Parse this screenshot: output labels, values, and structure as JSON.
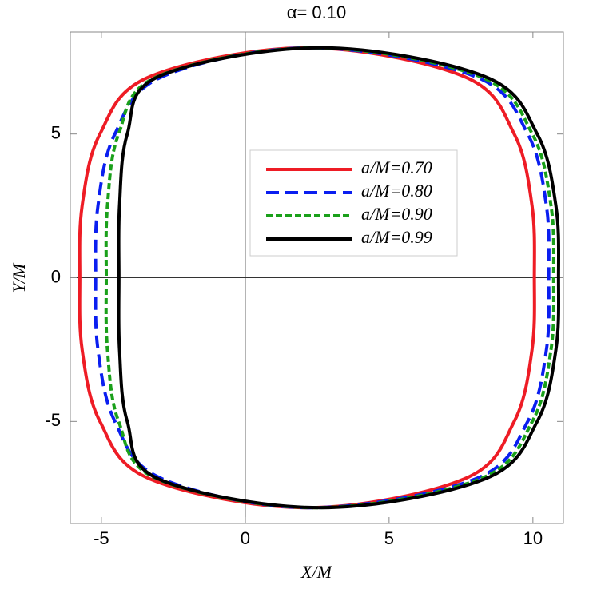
{
  "chart_data": {
    "type": "line",
    "title": "α= 0.10",
    "x_label": "X/M",
    "y_label": "Y/M",
    "xlim": [
      -6.08,
      11.06
    ],
    "ylim": [
      -8.55,
      8.55
    ],
    "xticks": [
      -5,
      0,
      5,
      10
    ],
    "yticks": [
      -5,
      0,
      5
    ],
    "legend": "center",
    "series": [
      {
        "name": "a/M=0.70",
        "color": "#ee1c25",
        "dash": "solid",
        "x": [
          2.15,
          7.61,
          9.35,
          9.97,
          10.05,
          9.97,
          9.35,
          7.61,
          2.15,
          -3.31,
          -5.05,
          -5.67,
          -5.75,
          -5.67,
          -5.05,
          -3.31
        ],
        "values": [
          8,
          7,
          5,
          2.5,
          0,
          -2.5,
          -5,
          -7,
          -8,
          -7,
          -5,
          -2.5,
          0,
          2.5,
          5,
          7
        ]
      },
      {
        "name": "a/M=0.80",
        "color": "#0a1ef0",
        "dash": "dashed",
        "x": [
          2.3,
          8.0,
          9.82,
          10.47,
          10.55,
          10.47,
          9.82,
          8.0,
          2.3,
          -2.88,
          -4.53,
          -5.12,
          -5.2,
          -5.12,
          -4.53,
          -2.88
        ],
        "values": [
          8,
          7,
          5,
          2.5,
          0,
          -2.5,
          -5,
          -7,
          -8,
          -7,
          -5,
          -2.5,
          0,
          2.5,
          5,
          7
        ]
      },
      {
        "name": "a/M=0.90",
        "color": "#1aa01a",
        "dash": "dotted",
        "x": [
          2.45,
          8.16,
          9.98,
          10.63,
          10.72,
          10.63,
          9.98,
          8.16,
          2.45,
          -3.05,
          -4.4,
          -4.79,
          -4.83,
          -4.79,
          -4.4,
          -3.05
        ],
        "values": [
          8,
          7,
          5,
          2.5,
          0,
          -2.5,
          -5,
          -7,
          -8,
          -7,
          -5,
          -2.5,
          0,
          2.5,
          5,
          7
        ]
      },
      {
        "name": "a/M=0.99",
        "color": "#000000",
        "dash": "solid",
        "x": [
          2.6,
          8.33,
          10.15,
          10.8,
          10.89,
          10.8,
          10.15,
          8.33,
          2.6,
          -3.01,
          -4.1,
          -4.37,
          -4.39,
          -4.37,
          -4.1,
          -3.01
        ],
        "values": [
          8,
          7,
          5,
          2.5,
          0,
          -2.5,
          -5,
          -7,
          -8,
          -7,
          -5,
          -2.5,
          0,
          2.5,
          5,
          7
        ]
      }
    ]
  }
}
